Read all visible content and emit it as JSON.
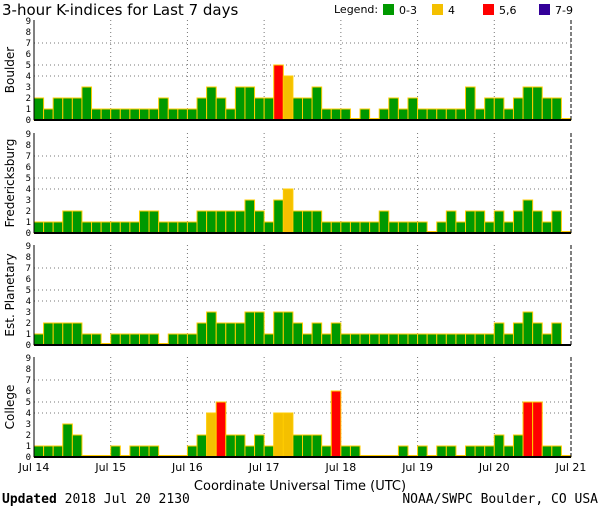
{
  "chart_data": {
    "type": "bar",
    "title": "3-hour K-indices for Last 7 days",
    "legend": {
      "label": "Legend:",
      "position": "top-right",
      "entries": [
        {
          "label": "0-3",
          "color": "#009900"
        },
        {
          "label": "4",
          "color": "#f4c000"
        },
        {
          "label": "5,6",
          "color": "#ff0000"
        },
        {
          "label": "7-9",
          "color": "#330099"
        }
      ]
    },
    "xlabel": "Coordinate Universal Time (UTC)",
    "x_ticks": [
      "Jul 14",
      "Jul 15",
      "Jul 16",
      "Jul 17",
      "Jul 18",
      "Jul 19",
      "Jul 20",
      "Jul 21"
    ],
    "y_ticks": [
      "0",
      "1",
      "2",
      "3",
      "4",
      "5",
      "6",
      "7",
      "8",
      "9"
    ],
    "ylim": [
      0,
      9
    ],
    "bars_per_day": 8,
    "grid": {
      "horizontal_at": [
        4,
        5,
        7
      ],
      "vertical": "daily"
    },
    "bar_border_color": "#ffcc00",
    "series": [
      {
        "name": "Boulder",
        "values": [
          2,
          1,
          2,
          2,
          2,
          3,
          1,
          1,
          1,
          1,
          1,
          1,
          1,
          2,
          1,
          1,
          1,
          2,
          3,
          2,
          1,
          3,
          3,
          2,
          2,
          5,
          4,
          2,
          2,
          3,
          1,
          1,
          1,
          0,
          1,
          0,
          1,
          2,
          1,
          2,
          1,
          1,
          1,
          1,
          1,
          3,
          1,
          2,
          2,
          1,
          2,
          3,
          3,
          2,
          2,
          0
        ]
      },
      {
        "name": "Fredericksburg",
        "values": [
          1,
          1,
          1,
          2,
          2,
          1,
          1,
          1,
          1,
          1,
          1,
          2,
          2,
          1,
          1,
          1,
          1,
          2,
          2,
          2,
          2,
          2,
          3,
          2,
          1,
          3,
          4,
          2,
          2,
          2,
          1,
          1,
          1,
          1,
          1,
          1,
          2,
          1,
          1,
          1,
          1,
          0,
          1,
          2,
          1,
          2,
          2,
          1,
          2,
          1,
          2,
          3,
          2,
          1,
          2,
          0
        ]
      },
      {
        "name": "Est. Planetary",
        "values": [
          1,
          2,
          2,
          2,
          2,
          1,
          1,
          0,
          1,
          1,
          1,
          1,
          1,
          0,
          1,
          1,
          1,
          2,
          3,
          2,
          2,
          2,
          3,
          3,
          1,
          3,
          3,
          2,
          1,
          2,
          1,
          2,
          1,
          1,
          1,
          1,
          1,
          1,
          1,
          1,
          1,
          1,
          1,
          1,
          1,
          1,
          1,
          1,
          2,
          1,
          2,
          3,
          2,
          1,
          2,
          null
        ]
      },
      {
        "name": "College",
        "values": [
          1,
          1,
          1,
          3,
          2,
          0,
          0,
          0,
          1,
          0,
          1,
          1,
          1,
          0,
          0,
          0,
          1,
          2,
          4,
          5,
          2,
          2,
          1,
          2,
          1,
          4,
          4,
          2,
          2,
          2,
          1,
          6,
          1,
          1,
          0,
          0,
          0,
          0,
          1,
          0,
          1,
          0,
          1,
          1,
          0,
          1,
          1,
          1,
          2,
          1,
          2,
          5,
          5,
          1,
          1,
          0
        ]
      }
    ]
  },
  "footer": {
    "updated_label": "Updated",
    "updated_value": "2018 Jul 20 2130",
    "source": "NOAA/SWPC Boulder, CO USA"
  }
}
